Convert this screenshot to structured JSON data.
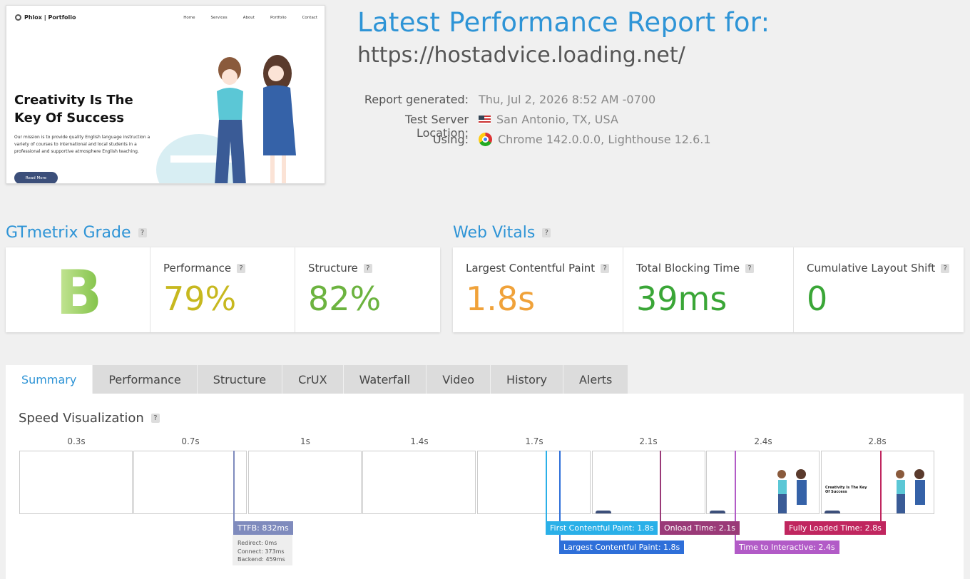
{
  "preview": {
    "logo_text": "Phlox | Portfolio",
    "nav": [
      "Home",
      "Services",
      "About",
      "Portfolio",
      "Contact"
    ],
    "hero_title": "Creativity Is The Key Of Success",
    "hero_desc": "Our mission is to provide quality English language instruction a variety of courses to international and local students in a professional and supportive atmosphere English teaching.",
    "button": "Read More"
  },
  "header": {
    "title": "Latest Performance Report for:",
    "url": "https://hostadvice.loading.net/",
    "report_label": "Report generated:",
    "report_value": "Thu, Jul 2, 2026 8:52 AM -0700",
    "location_label": "Test Server Location:",
    "location_value": "San Antonio, TX, USA",
    "using_label": "Using:",
    "using_value": "Chrome 142.0.0.0, Lighthouse 12.6.1"
  },
  "grade": {
    "title": "GTmetrix Grade",
    "letter": "B",
    "performance_label": "Performance",
    "performance_value": "79%",
    "structure_label": "Structure",
    "structure_value": "82%"
  },
  "vitals": {
    "title": "Web Vitals",
    "lcp_label": "Largest Contentful Paint",
    "lcp_value": "1.8s",
    "tbt_label": "Total Blocking Time",
    "tbt_value": "39ms",
    "cls_label": "Cumulative Layout Shift",
    "cls_value": "0"
  },
  "tabs": [
    "Summary",
    "Performance",
    "Structure",
    "CrUX",
    "Waterfall",
    "Video",
    "History",
    "Alerts"
  ],
  "speed": {
    "title": "Speed Visualization",
    "times": [
      "0.3s",
      "0.7s",
      "1s",
      "1.4s",
      "1.7s",
      "2.1s",
      "2.4s",
      "2.8s"
    ],
    "ttfb": "TTFB: 832ms",
    "ttfb_redirect": "Redirect: 0ms",
    "ttfb_connect": "Connect: 373ms",
    "ttfb_backend": "Backend: 459ms",
    "fcp": "First Contentful Paint: 1.8s",
    "lcp": "Largest Contentful Paint: 1.8s",
    "onload": "Onload Time: 2.1s",
    "tti": "Time to Interactive: 2.4s",
    "fully": "Fully Loaded Time: 2.8s"
  },
  "help": "?",
  "colors": {
    "accent": "#2e94d6",
    "perf": "#c7b81f",
    "struct": "#6cb33f",
    "lcp": "#f0a23a",
    "tbt": "#3aa637",
    "cls": "#3aa637"
  }
}
